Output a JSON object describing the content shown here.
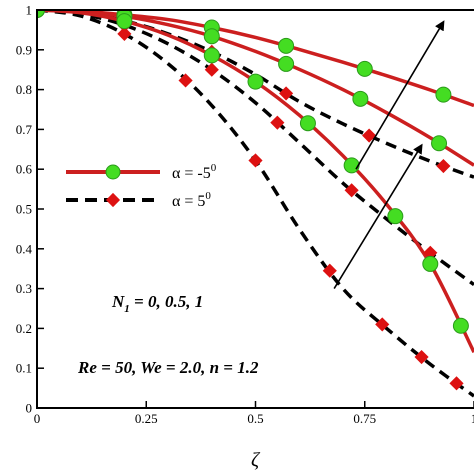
{
  "chart_data": {
    "type": "line",
    "xlabel": "ζ",
    "ylabel": "",
    "xlim": [
      0,
      1
    ],
    "ylim": [
      0,
      1
    ],
    "x_ticks": [
      "0",
      "0.25",
      "0.5",
      "0.75",
      "1"
    ],
    "y_ticks": [
      "0",
      "0.1",
      "0.2",
      "0.3",
      "0.4",
      "0.5",
      "0.6",
      "0.7",
      "0.8",
      "0.9",
      "1"
    ],
    "grid": false,
    "legend_position": "middle-left",
    "colors": {
      "alpha_neg": "#cc1f1f",
      "marker_neg": "#44dd22",
      "alpha_pos": "#000000",
      "marker_pos": "#dd1111"
    },
    "legend": [
      {
        "label": "α = -5",
        "superscript": "0",
        "style": "solid-circle"
      },
      {
        "label": "α = 5",
        "superscript": "0",
        "style": "dashed-diamond"
      }
    ],
    "annotations": {
      "n_line_prefix": "N",
      "n_line_subscript": "1",
      "n_line_values": " = 0, 0.5, 1",
      "params": "Re = 50, We = 2.0, n = 1.2"
    },
    "series": [
      {
        "group": "alpha_neg",
        "x": [
          0,
          0.1,
          0.2,
          0.3,
          0.4,
          0.5,
          0.6,
          0.7,
          0.8,
          0.9,
          1.0
        ],
        "y": [
          1,
          0.997,
          0.988,
          0.976,
          0.956,
          0.931,
          0.901,
          0.869,
          0.835,
          0.799,
          0.76
        ],
        "markers": [
          0,
          0.2,
          0.4,
          0.57,
          0.75,
          0.93
        ]
      },
      {
        "group": "alpha_neg",
        "x": [
          0,
          0.1,
          0.2,
          0.3,
          0.4,
          0.5,
          0.6,
          0.7,
          0.8,
          0.9,
          1.0
        ],
        "y": [
          1,
          0.996,
          0.984,
          0.963,
          0.934,
          0.896,
          0.851,
          0.8,
          0.742,
          0.679,
          0.61
        ],
        "markers": [
          0,
          0.2,
          0.4,
          0.57,
          0.74,
          0.92
        ]
      },
      {
        "group": "alpha_neg",
        "x": [
          0,
          0.1,
          0.2,
          0.3,
          0.4,
          0.5,
          0.6,
          0.7,
          0.8,
          0.9,
          1.0
        ],
        "y": [
          1,
          0.993,
          0.972,
          0.937,
          0.886,
          0.82,
          0.736,
          0.634,
          0.512,
          0.362,
          0.14
        ],
        "markers": [
          0,
          0.2,
          0.4,
          0.5,
          0.62,
          0.72,
          0.82,
          0.9,
          0.97
        ]
      },
      {
        "group": "alpha_pos",
        "x": [
          0,
          0.1,
          0.2,
          0.3,
          0.4,
          0.5,
          0.6,
          0.7,
          0.8,
          0.9,
          1.0
        ],
        "y": [
          1,
          0.993,
          0.973,
          0.94,
          0.895,
          0.838,
          0.77,
          0.714,
          0.665,
          0.62,
          0.58
        ],
        "markers": [
          0,
          0.2,
          0.4,
          0.57,
          0.76,
          0.93
        ]
      },
      {
        "group": "alpha_pos",
        "x": [
          0,
          0.1,
          0.2,
          0.3,
          0.4,
          0.5,
          0.6,
          0.7,
          0.8,
          0.9,
          1.0
        ],
        "y": [
          1,
          0.99,
          0.962,
          0.915,
          0.85,
          0.767,
          0.667,
          0.565,
          0.475,
          0.39,
          0.31
        ],
        "markers": [
          0,
          0.2,
          0.4,
          0.55,
          0.72,
          0.9
        ]
      },
      {
        "group": "alpha_pos",
        "x": [
          0,
          0.1,
          0.2,
          0.3,
          0.4,
          0.5,
          0.6,
          0.7,
          0.8,
          0.9,
          1.0
        ],
        "y": [
          1,
          0.985,
          0.94,
          0.865,
          0.76,
          0.622,
          0.45,
          0.3,
          0.2,
          0.11,
          0.03
        ],
        "markers": [
          0,
          0.2,
          0.34,
          0.5,
          0.67,
          0.79,
          0.88,
          0.96
        ]
      }
    ],
    "arrows": [
      {
        "from": [
          0.68,
          0.3
        ],
        "to": [
          0.88,
          0.66
        ]
      },
      {
        "from": [
          0.73,
          0.6
        ],
        "to": [
          0.93,
          0.97
        ]
      }
    ]
  }
}
